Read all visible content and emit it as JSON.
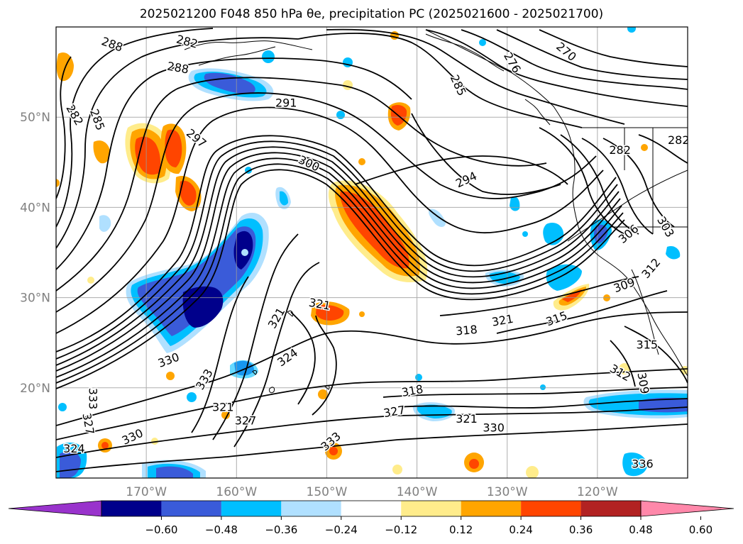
{
  "title": "2025021200 F048 850 hPa θe, precipitation PC (2025021600 - 2025021700)",
  "map": {
    "lon_range": [
      -180,
      -110
    ],
    "lat_range": [
      10,
      60
    ],
    "lon_ticks": [
      {
        "value": -170,
        "label": "170°W"
      },
      {
        "value": -160,
        "label": "160°W"
      },
      {
        "value": -150,
        "label": "150°W"
      },
      {
        "value": -140,
        "label": "140°W"
      },
      {
        "value": -130,
        "label": "130°W"
      },
      {
        "value": -120,
        "label": "120°W"
      }
    ],
    "lat_ticks": [
      {
        "value": 20,
        "label": "20°N"
      },
      {
        "value": 30,
        "label": "30°N"
      },
      {
        "value": 40,
        "label": "40°N"
      },
      {
        "value": 50,
        "label": "50°N"
      }
    ],
    "contour_labels": [
      {
        "text": "288",
        "lon": -173.8,
        "lat": 58.0,
        "rot": 20
      },
      {
        "text": "282",
        "lon": -165.5,
        "lat": 58.3,
        "rot": 15
      },
      {
        "text": "288",
        "lon": -166.5,
        "lat": 55.4,
        "rot": 10
      },
      {
        "text": "282",
        "lon": -178.0,
        "lat": 50.2,
        "rot": 60
      },
      {
        "text": "285",
        "lon": -175.5,
        "lat": 49.7,
        "rot": 70
      },
      {
        "text": "291",
        "lon": -154.5,
        "lat": 51.5,
        "rot": 0
      },
      {
        "text": "297",
        "lon": -164.5,
        "lat": 47.6,
        "rot": 40
      },
      {
        "text": "300",
        "lon": -152.0,
        "lat": 44.8,
        "rot": 25
      },
      {
        "text": "294",
        "lon": -134.5,
        "lat": 43.0,
        "rot": -25
      },
      {
        "text": "285",
        "lon": -135.5,
        "lat": 53.5,
        "rot": 65
      },
      {
        "text": "276",
        "lon": -129.5,
        "lat": 56.0,
        "rot": 60
      },
      {
        "text": "270",
        "lon": -123.5,
        "lat": 57.2,
        "rot": 40
      },
      {
        "text": "282",
        "lon": -117.5,
        "lat": 46.3,
        "rot": 0
      },
      {
        "text": "282",
        "lon": -111.0,
        "lat": 47.4,
        "rot": 0
      },
      {
        "text": "306",
        "lon": -116.5,
        "lat": 37.0,
        "rot": -40
      },
      {
        "text": "303",
        "lon": -112.5,
        "lat": 37.8,
        "rot": 60
      },
      {
        "text": "312",
        "lon": -114.0,
        "lat": 33.2,
        "rot": -50
      },
      {
        "text": "309",
        "lon": -117.0,
        "lat": 31.3,
        "rot": -20
      },
      {
        "text": "315",
        "lon": -124.5,
        "lat": 27.6,
        "rot": -20
      },
      {
        "text": "321",
        "lon": -130.5,
        "lat": 27.4,
        "rot": -10
      },
      {
        "text": "318",
        "lon": -134.5,
        "lat": 26.3,
        "rot": -5
      },
      {
        "text": "315",
        "lon": -114.5,
        "lat": 24.7,
        "rot": 0
      },
      {
        "text": "312",
        "lon": -117.5,
        "lat": 21.6,
        "rot": 30
      },
      {
        "text": "309",
        "lon": -115.0,
        "lat": 20.5,
        "rot": 80
      },
      {
        "text": "318",
        "lon": -140.5,
        "lat": 19.6,
        "rot": -10
      },
      {
        "text": "327",
        "lon": -142.5,
        "lat": 17.3,
        "rot": -10
      },
      {
        "text": "321",
        "lon": -134.5,
        "lat": 16.5,
        "rot": 0
      },
      {
        "text": "330",
        "lon": -131.5,
        "lat": 15.5,
        "rot": 0
      },
      {
        "text": "336",
        "lon": -115.0,
        "lat": 11.5,
        "rot": 0
      },
      {
        "text": "321",
        "lon": -150.8,
        "lat": 29.2,
        "rot": 10
      },
      {
        "text": "321",
        "lon": -155.5,
        "lat": 27.7,
        "rot": -60
      },
      {
        "text": "324",
        "lon": -154.3,
        "lat": 23.3,
        "rot": -35
      },
      {
        "text": "330",
        "lon": -167.5,
        "lat": 23.0,
        "rot": -20
      },
      {
        "text": "333",
        "lon": -163.5,
        "lat": 20.9,
        "rot": -60
      },
      {
        "text": "333",
        "lon": -176.0,
        "lat": 18.8,
        "rot": 90
      },
      {
        "text": "327",
        "lon": -176.5,
        "lat": 16.0,
        "rot": 80
      },
      {
        "text": "321",
        "lon": -161.5,
        "lat": 17.8,
        "rot": 0
      },
      {
        "text": "327",
        "lon": -159.0,
        "lat": 16.3,
        "rot": 0
      },
      {
        "text": "330",
        "lon": -171.5,
        "lat": 14.5,
        "rot": -25
      },
      {
        "text": "333",
        "lon": -149.5,
        "lat": 14.0,
        "rot": -40
      },
      {
        "text": "324",
        "lon": -178.0,
        "lat": 13.2,
        "rot": 0
      }
    ]
  },
  "colorbar": {
    "bounds": [
      -0.72,
      -0.6,
      -0.48,
      -0.36,
      -0.24,
      -0.12,
      0.12,
      0.24,
      0.36,
      0.48,
      0.6,
      0.72
    ],
    "colors": [
      "#9933cc",
      "#00008b",
      "#3a5bd9",
      "#00bfff",
      "#b0e0ff",
      "#ffffff",
      "#ffec8b",
      "#ffa500",
      "#ff4500",
      "#b22222",
      "#ff88aa"
    ],
    "tick_labels": [
      "−0.60",
      "−0.48",
      "−0.36",
      "−0.24",
      "−0.12",
      "0.12",
      "0.24",
      "0.36",
      "0.48",
      "0.60"
    ]
  }
}
